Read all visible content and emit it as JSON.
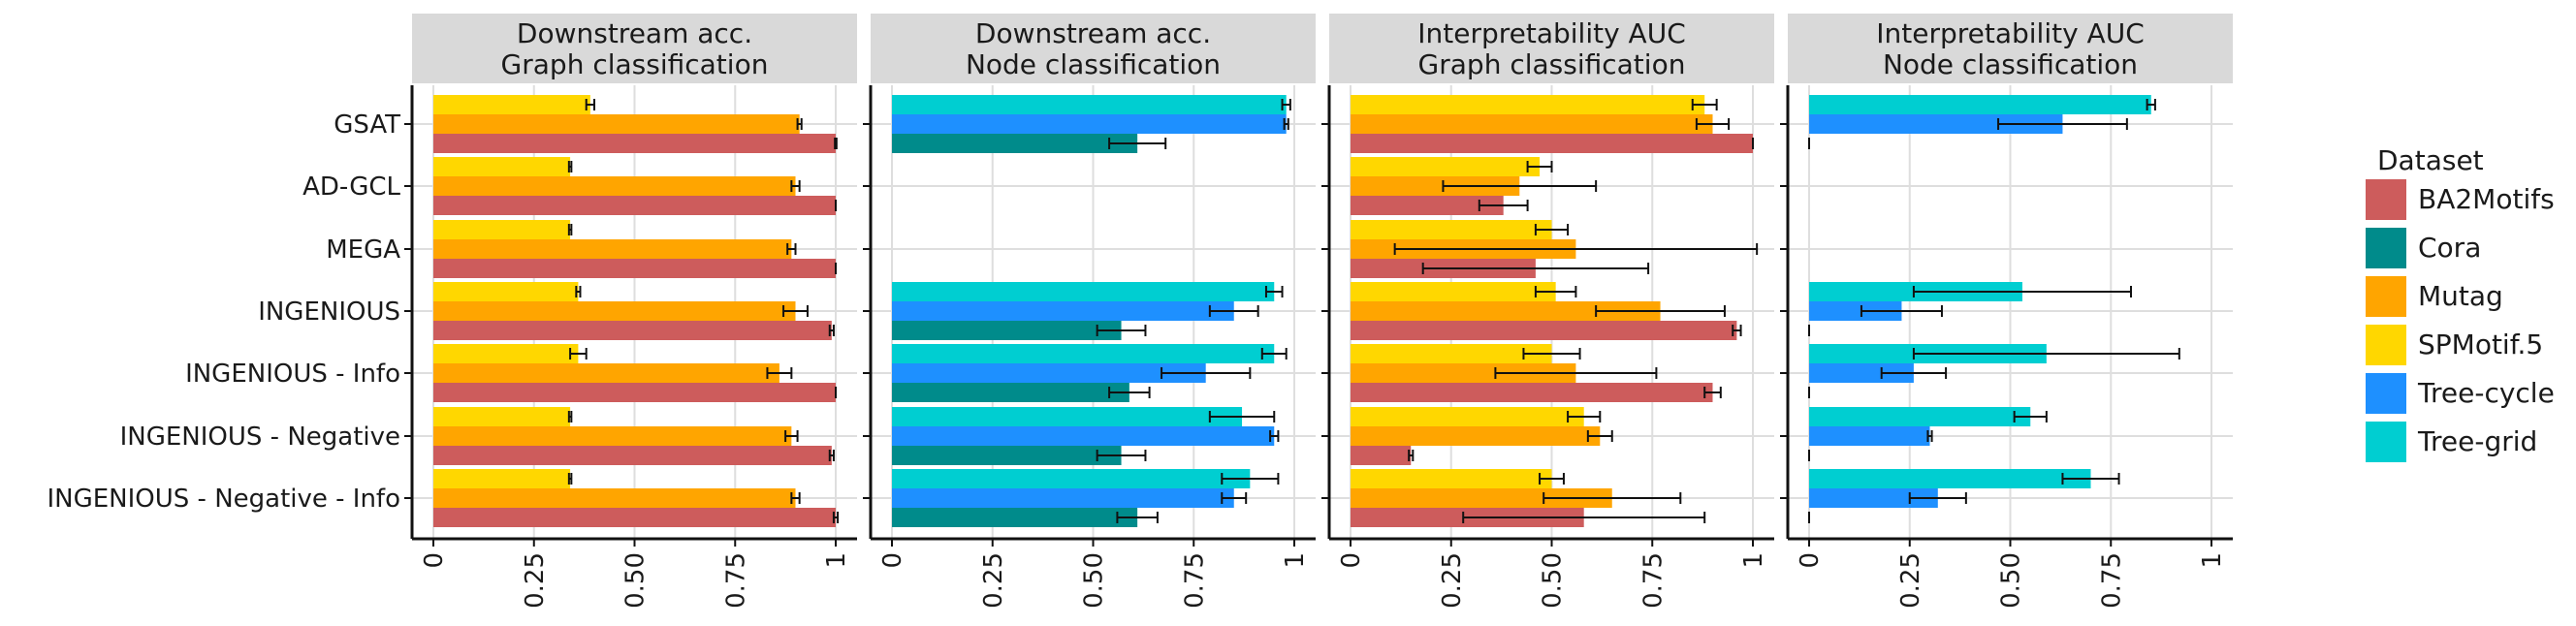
{
  "chart_data": {
    "type": "bar",
    "orientation": "horizontal",
    "facet_rows": [
      "GSAT",
      "AD-GCL",
      "MEGA",
      "INGENIOUS",
      "INGENIOUS - Info",
      "INGENIOUS - Negative",
      "INGENIOUS - Negative - Info"
    ],
    "x_ticks": [
      "0",
      "0.25",
      "0.50",
      "0.75",
      "1"
    ],
    "x_tick_values": [
      0,
      0.25,
      0.5,
      0.75,
      1
    ],
    "xlim": [
      0,
      1
    ],
    "legend": {
      "title": "Dataset",
      "position": "right",
      "entries": [
        {
          "name": "BA2Motifs",
          "color": "#CD5C5C"
        },
        {
          "name": "Cora",
          "color": "#008B8B"
        },
        {
          "name": "Mutag",
          "color": "#FFA500"
        },
        {
          "name": "SPMotif.5",
          "color": "#FFD700"
        },
        {
          "name": "Tree-cycle",
          "color": "#1E90FF"
        },
        {
          "name": "Tree-grid",
          "color": "#00CED1"
        }
      ]
    },
    "panels": [
      {
        "title_line1": "Downstream acc.",
        "title_line2": "Graph classification",
        "datasets": [
          "SPMotif.5",
          "Mutag",
          "BA2Motifs"
        ],
        "values": [
          [
            0.39,
            0.91,
            1.0
          ],
          [
            0.34,
            0.9,
            1.0
          ],
          [
            0.34,
            0.89,
            1.0
          ],
          [
            0.36,
            0.9,
            0.99
          ],
          [
            0.36,
            0.86,
            1.0
          ],
          [
            0.34,
            0.89,
            0.99
          ],
          [
            0.34,
            0.9,
            1.0
          ]
        ],
        "errors": [
          [
            0.01,
            0.005,
            0.002
          ],
          [
            0.003,
            0.01,
            0.0
          ],
          [
            0.003,
            0.01,
            0.0
          ],
          [
            0.005,
            0.03,
            0.005
          ],
          [
            0.02,
            0.03,
            0.0
          ],
          [
            0.003,
            0.015,
            0.005
          ],
          [
            0.003,
            0.01,
            0.005
          ]
        ]
      },
      {
        "title_line1": "Downstream acc.",
        "title_line2": "Node classification",
        "datasets": [
          "Tree-grid",
          "Tree-cycle",
          "Cora"
        ],
        "values": [
          [
            0.98,
            0.98,
            0.61
          ],
          [
            null,
            null,
            null
          ],
          [
            null,
            null,
            null
          ],
          [
            0.95,
            0.85,
            0.57
          ],
          [
            0.95,
            0.78,
            0.59
          ],
          [
            0.87,
            0.95,
            0.57
          ],
          [
            0.89,
            0.85,
            0.61
          ]
        ],
        "errors": [
          [
            0.01,
            0.005,
            0.07
          ],
          [
            null,
            null,
            null
          ],
          [
            null,
            null,
            null
          ],
          [
            0.02,
            0.06,
            0.06
          ],
          [
            0.03,
            0.11,
            0.05
          ],
          [
            0.08,
            0.01,
            0.06
          ],
          [
            0.07,
            0.03,
            0.05
          ]
        ]
      },
      {
        "title_line1": "Interpretability AUC",
        "title_line2": "Graph classification",
        "datasets": [
          "SPMotif.5",
          "Mutag",
          "BA2Motifs"
        ],
        "values": [
          [
            0.88,
            0.9,
            1.0
          ],
          [
            0.47,
            0.42,
            0.38
          ],
          [
            0.5,
            0.56,
            0.46
          ],
          [
            0.51,
            0.77,
            0.96
          ],
          [
            0.5,
            0.56,
            0.9
          ],
          [
            0.58,
            0.62,
            0.15
          ],
          [
            0.5,
            0.65,
            0.58
          ]
        ],
        "errors": [
          [
            0.03,
            0.04,
            0.0
          ],
          [
            0.03,
            0.19,
            0.06
          ],
          [
            0.04,
            0.45,
            0.28
          ],
          [
            0.05,
            0.16,
            0.01
          ],
          [
            0.07,
            0.2,
            0.02
          ],
          [
            0.04,
            0.03,
            0.005
          ],
          [
            0.03,
            0.17,
            0.3
          ]
        ]
      },
      {
        "title_line1": "Interpretability AUC",
        "title_line2": "Node classification",
        "datasets": [
          "Tree-grid",
          "Tree-cycle",
          "Cora"
        ],
        "values": [
          [
            0.85,
            0.63,
            0.0
          ],
          [
            null,
            null,
            null
          ],
          [
            null,
            null,
            null
          ],
          [
            0.53,
            0.23,
            0.0
          ],
          [
            0.59,
            0.26,
            0.0
          ],
          [
            0.55,
            0.3,
            0.0
          ],
          [
            0.7,
            0.32,
            0.0
          ]
        ],
        "errors": [
          [
            0.01,
            0.16,
            0.0
          ],
          [
            null,
            null,
            null
          ],
          [
            null,
            null,
            null
          ],
          [
            0.27,
            0.1,
            0.0
          ],
          [
            0.33,
            0.08,
            0.0
          ],
          [
            0.04,
            0.005,
            0.0
          ],
          [
            0.07,
            0.07,
            0.0
          ]
        ]
      }
    ]
  }
}
